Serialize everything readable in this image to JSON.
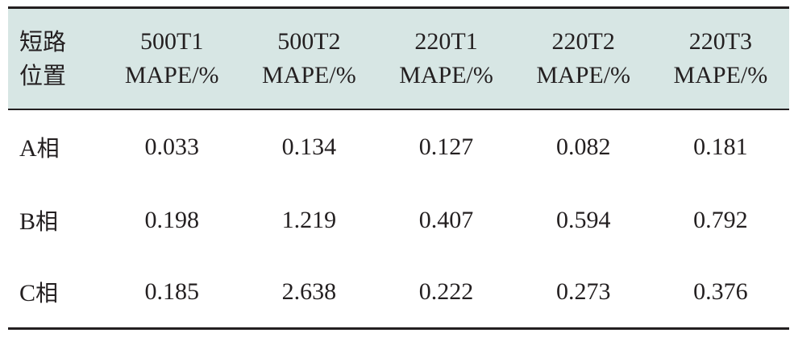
{
  "table": {
    "header": {
      "first": [
        "短路",
        "位置"
      ],
      "columns": [
        {
          "name": "500T1",
          "unit": "MAPE/%"
        },
        {
          "name": "500T2",
          "unit": "MAPE/%"
        },
        {
          "name": "220T1",
          "unit": "MAPE/%"
        },
        {
          "name": "220T2",
          "unit": "MAPE/%"
        },
        {
          "name": "220T3",
          "unit": "MAPE/%"
        }
      ]
    },
    "rows": [
      {
        "phase": "A",
        "suffix": "相",
        "values": [
          "0.033",
          "0.134",
          "0.127",
          "0.082",
          "0.181"
        ]
      },
      {
        "phase": "B",
        "suffix": "相",
        "values": [
          "0.198",
          "1.219",
          "0.407",
          "0.594",
          "0.792"
        ]
      },
      {
        "phase": "C",
        "suffix": "相",
        "values": [
          "0.185",
          "2.638",
          "0.222",
          "0.273",
          "0.376"
        ]
      }
    ]
  },
  "colors": {
    "header_bg": "#d7e6e4",
    "rule": "#231f20",
    "text": "#231f20"
  }
}
